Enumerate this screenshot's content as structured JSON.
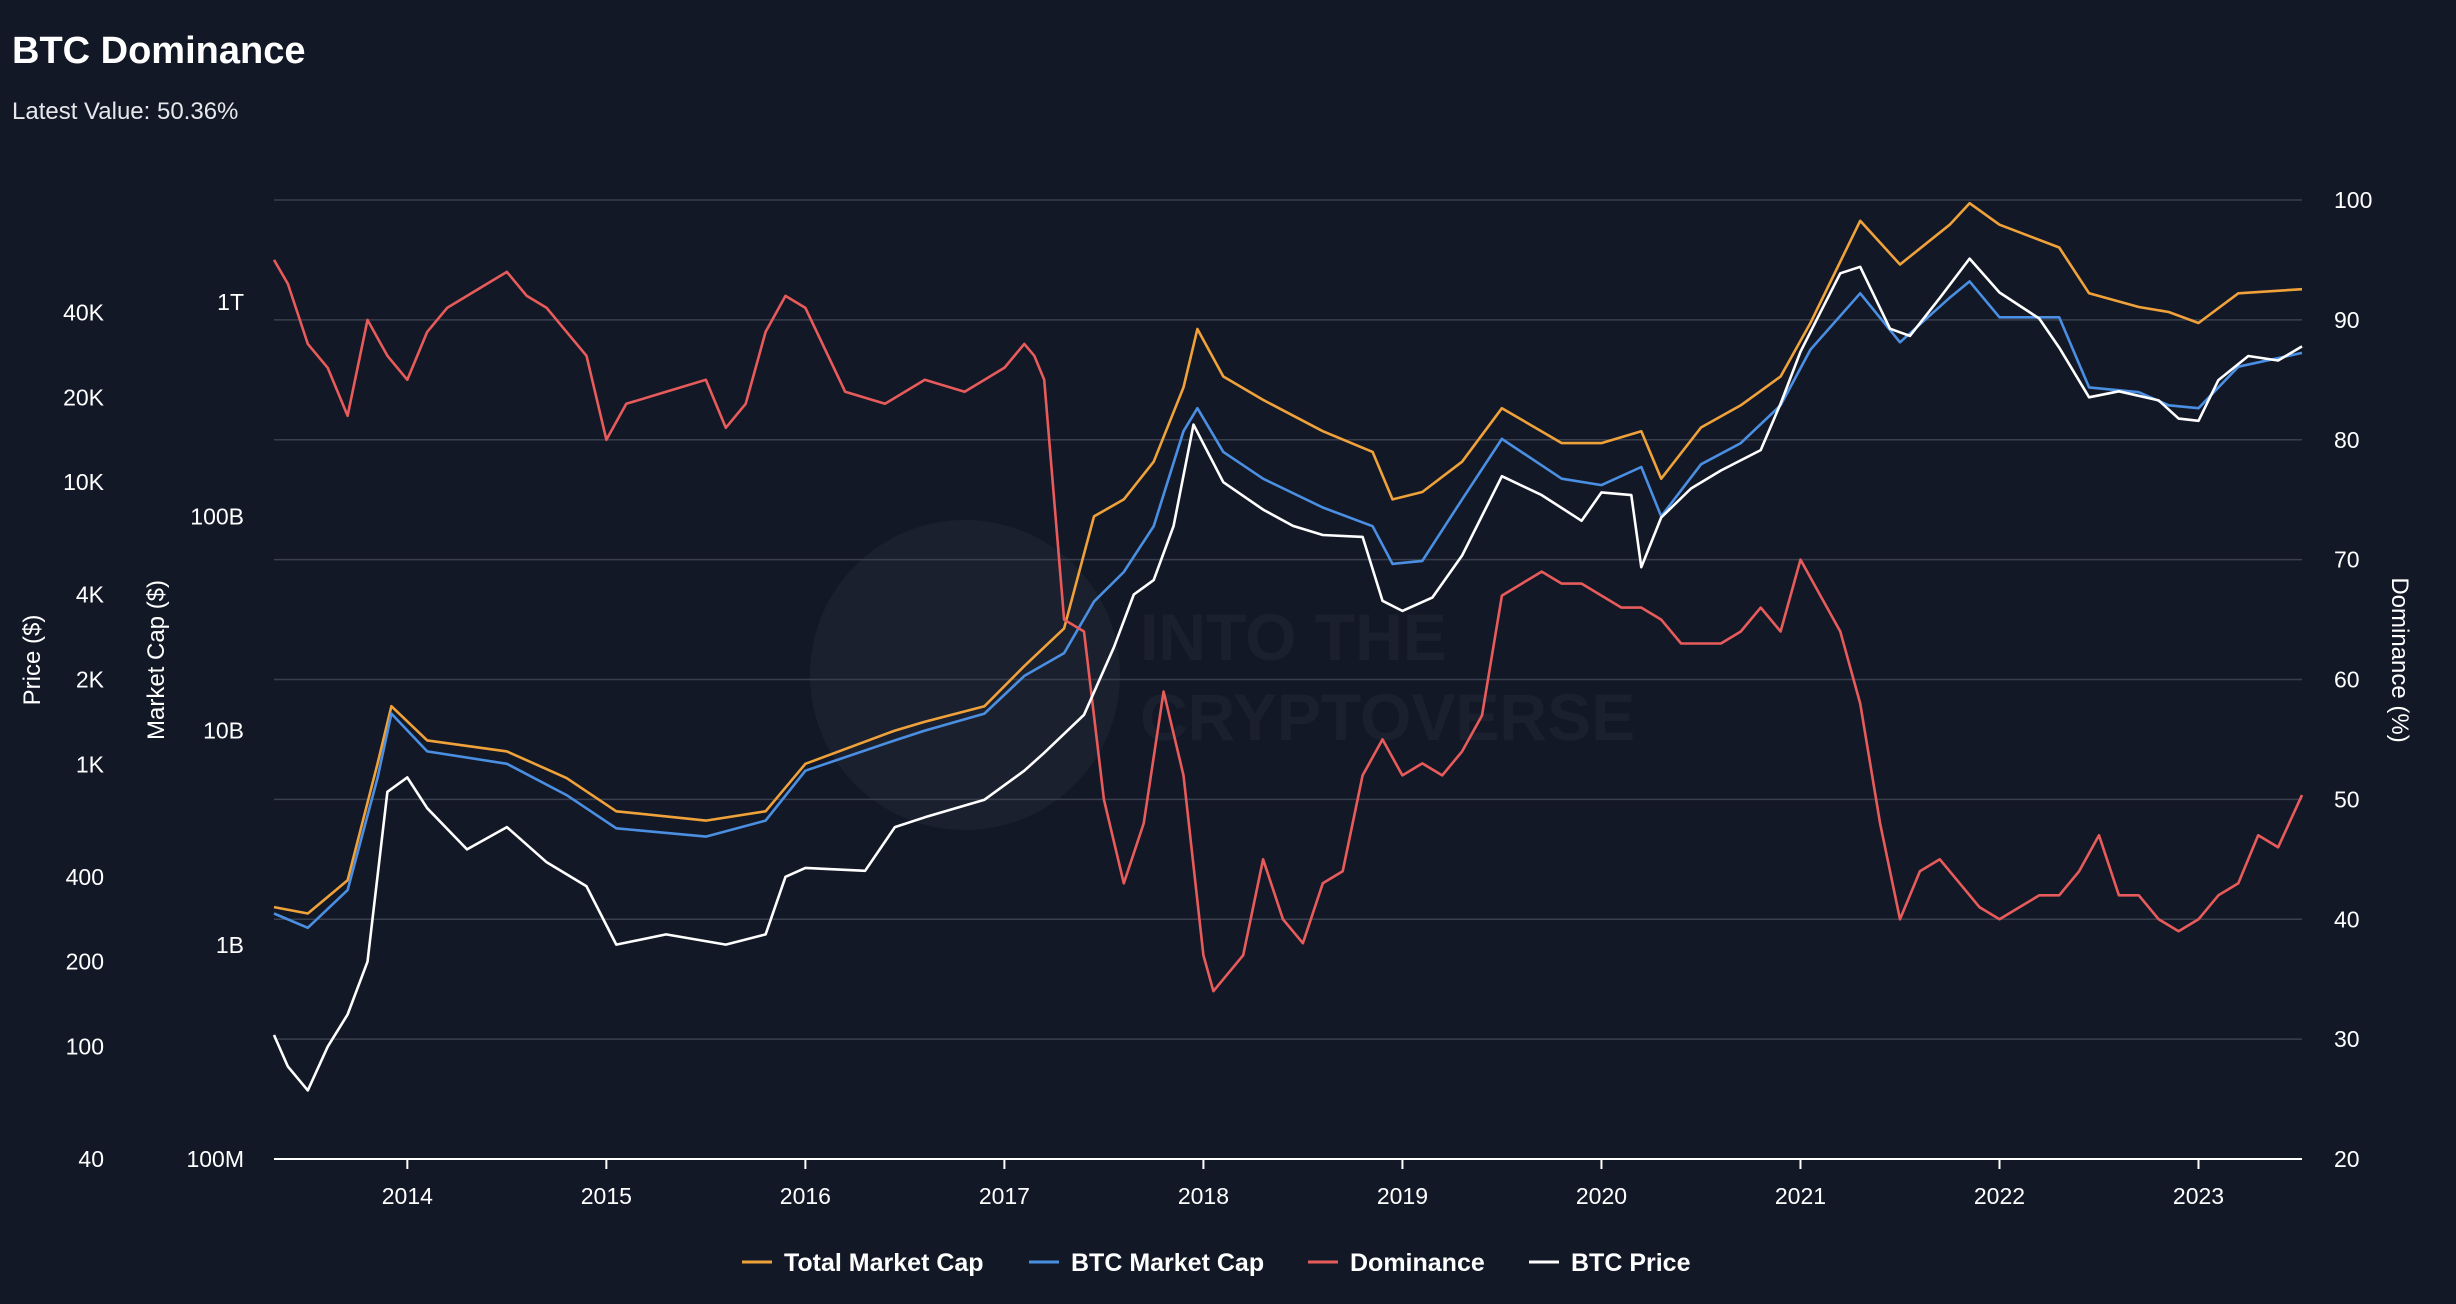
{
  "header": {
    "title": "BTC Dominance",
    "subtitle": "Latest Value: 50.36%"
  },
  "watermark": {
    "line1": "INTO THE",
    "line2": "CRYPTOVERSE"
  },
  "colors": {
    "background": "#131827",
    "grid": "#3a3f4d",
    "total_market_cap": "#f0a23a",
    "btc_market_cap": "#4a8fe2",
    "dominance": "#e85b5b",
    "btc_price": "#ffffff"
  },
  "chart_data": {
    "type": "line",
    "title": "BTC Dominance",
    "subtitle": "Latest Value: 50.36%",
    "x_range": [
      2013.33,
      2023.52
    ],
    "x_ticks": [
      "2014",
      "2015",
      "2016",
      "2017",
      "2018",
      "2019",
      "2020",
      "2021",
      "2022",
      "2023"
    ],
    "axes": {
      "price": {
        "label": "Price ($)",
        "scale": "log",
        "range": [
          40,
          100000
        ],
        "ticks": [
          {
            "v": 40,
            "label": "40"
          },
          {
            "v": 100,
            "label": "100"
          },
          {
            "v": 200,
            "label": "200"
          },
          {
            "v": 400,
            "label": "400"
          },
          {
            "v": 1000,
            "label": "1K"
          },
          {
            "v": 2000,
            "label": "2K"
          },
          {
            "v": 4000,
            "label": "4K"
          },
          {
            "v": 10000,
            "label": "10K"
          },
          {
            "v": 20000,
            "label": "20K"
          },
          {
            "v": 40000,
            "label": "40K"
          }
        ]
      },
      "market_cap": {
        "label": "Market Cap ($)",
        "scale": "log",
        "range": [
          100000000,
          3000000000000
        ],
        "ticks": [
          {
            "v": 100000000,
            "label": "100M"
          },
          {
            "v": 1000000000,
            "label": "1B"
          },
          {
            "v": 10000000000,
            "label": "10B"
          },
          {
            "v": 100000000000,
            "label": "100B"
          },
          {
            "v": 1000000000000,
            "label": "1T"
          }
        ]
      },
      "dominance": {
        "label": "Dominance (%)",
        "scale": "linear",
        "range": [
          20,
          100
        ],
        "ticks": [
          {
            "v": 20,
            "label": "20"
          },
          {
            "v": 30,
            "label": "30"
          },
          {
            "v": 40,
            "label": "40"
          },
          {
            "v": 50,
            "label": "50"
          },
          {
            "v": 60,
            "label": "60"
          },
          {
            "v": 70,
            "label": "70"
          },
          {
            "v": 80,
            "label": "80"
          },
          {
            "v": 90,
            "label": "90"
          },
          {
            "v": 100,
            "label": "100"
          }
        ]
      }
    },
    "legend": {
      "placement": "bottom-center",
      "entries": [
        "Total Market Cap",
        "BTC Market Cap",
        "Dominance",
        "BTC Price"
      ]
    },
    "series": [
      {
        "name": "Total Market Cap",
        "axis": "market_cap",
        "x": [
          2013.33,
          2013.5,
          2013.7,
          2013.85,
          2013.92,
          2014.1,
          2014.5,
          2014.8,
          2015.05,
          2015.5,
          2015.8,
          2016.0,
          2016.45,
          2016.6,
          2016.9,
          2017.1,
          2017.3,
          2017.45,
          2017.6,
          2017.75,
          2017.9,
          2017.97,
          2018.1,
          2018.3,
          2018.6,
          2018.85,
          2018.95,
          2019.1,
          2019.3,
          2019.5,
          2019.8,
          2020.0,
          2020.2,
          2020.3,
          2020.5,
          2020.7,
          2020.9,
          2021.05,
          2021.3,
          2021.5,
          2021.75,
          2021.85,
          2022.0,
          2022.3,
          2022.45,
          2022.7,
          2022.85,
          2023.0,
          2023.2,
          2023.52
        ],
        "values": [
          1500000000,
          1400000000,
          2000000000,
          7000000000,
          13000000000,
          9000000000,
          8000000000,
          6000000000,
          4200000000,
          3800000000,
          4200000000,
          7000000000,
          10000000000,
          11000000000,
          13000000000,
          20000000000,
          30000000000,
          100000000000,
          120000000000,
          180000000000,
          400000000000,
          750000000000,
          450000000000,
          350000000000,
          250000000000,
          200000000000,
          120000000000,
          130000000000,
          180000000000,
          320000000000,
          220000000000,
          220000000000,
          250000000000,
          150000000000,
          260000000000,
          330000000000,
          450000000000,
          800000000000,
          2400000000000,
          1500000000000,
          2300000000000,
          2900000000000,
          2300000000000,
          1800000000000,
          1100000000000,
          950000000000,
          900000000000,
          800000000000,
          1100000000000,
          1150000000000
        ]
      },
      {
        "name": "BTC Market Cap",
        "axis": "market_cap",
        "x": [
          2013.33,
          2013.5,
          2013.7,
          2013.85,
          2013.92,
          2014.1,
          2014.5,
          2014.8,
          2015.05,
          2015.5,
          2015.8,
          2016.0,
          2016.45,
          2016.6,
          2016.9,
          2017.1,
          2017.3,
          2017.45,
          2017.6,
          2017.75,
          2017.9,
          2017.97,
          2018.1,
          2018.3,
          2018.6,
          2018.85,
          2018.95,
          2019.1,
          2019.3,
          2019.5,
          2019.8,
          2020.0,
          2020.2,
          2020.3,
          2020.5,
          2020.7,
          2020.9,
          2021.05,
          2021.3,
          2021.5,
          2021.75,
          2021.85,
          2022.0,
          2022.3,
          2022.45,
          2022.7,
          2022.85,
          2023.0,
          2023.2,
          2023.52
        ],
        "values": [
          1400000000,
          1200000000,
          1800000000,
          6000000000,
          12000000000,
          8000000000,
          7000000000,
          5000000000,
          3500000000,
          3200000000,
          3800000000,
          6500000000,
          9000000000,
          10000000000,
          12000000000,
          18000000000,
          23000000000,
          40000000000,
          55000000000,
          90000000000,
          250000000000,
          320000000000,
          200000000000,
          150000000000,
          110000000000,
          90000000000,
          60000000000,
          62000000000,
          120000000000,
          230000000000,
          150000000000,
          140000000000,
          170000000000,
          100000000000,
          175000000000,
          220000000000,
          330000000000,
          600000000000,
          1100000000000,
          650000000000,
          1050000000000,
          1250000000000,
          850000000000,
          850000000000,
          400000000000,
          380000000000,
          330000000000,
          320000000000,
          500000000000,
          580000000000
        ]
      },
      {
        "name": "Dominance",
        "axis": "dominance",
        "x": [
          2013.33,
          2013.4,
          2013.5,
          2013.6,
          2013.7,
          2013.8,
          2013.9,
          2014.0,
          2014.1,
          2014.2,
          2014.3,
          2014.4,
          2014.5,
          2014.6,
          2014.7,
          2014.8,
          2014.9,
          2015.0,
          2015.1,
          2015.3,
          2015.5,
          2015.6,
          2015.7,
          2015.8,
          2015.9,
          2016.0,
          2016.2,
          2016.4,
          2016.6,
          2016.8,
          2017.0,
          2017.1,
          2017.15,
          2017.2,
          2017.3,
          2017.4,
          2017.5,
          2017.6,
          2017.7,
          2017.8,
          2017.9,
          2018.0,
          2018.05,
          2018.2,
          2018.3,
          2018.4,
          2018.5,
          2018.6,
          2018.7,
          2018.8,
          2018.9,
          2019.0,
          2019.1,
          2019.2,
          2019.3,
          2019.4,
          2019.5,
          2019.6,
          2019.7,
          2019.8,
          2019.9,
          2020.0,
          2020.1,
          2020.2,
          2020.3,
          2020.4,
          2020.5,
          2020.6,
          2020.7,
          2020.8,
          2020.9,
          2021.0,
          2021.1,
          2021.2,
          2021.3,
          2021.4,
          2021.5,
          2021.6,
          2021.7,
          2021.8,
          2021.9,
          2022.0,
          2022.1,
          2022.2,
          2022.3,
          2022.4,
          2022.5,
          2022.6,
          2022.7,
          2022.8,
          2022.9,
          2023.0,
          2023.1,
          2023.2,
          2023.3,
          2023.4,
          2023.52
        ],
        "values": [
          95,
          93,
          88,
          86,
          82,
          90,
          87,
          85,
          89,
          91,
          92,
          93,
          94,
          92,
          91,
          89,
          87,
          80,
          83,
          84,
          85,
          81,
          83,
          89,
          92,
          91,
          84,
          83,
          85,
          84,
          86,
          88,
          87,
          85,
          65,
          64,
          50,
          43,
          48,
          59,
          52,
          37,
          34,
          37,
          45,
          40,
          38,
          43,
          44,
          52,
          55,
          52,
          53,
          52,
          54,
          57,
          67,
          68,
          69,
          68,
          68,
          67,
          66,
          66,
          65,
          63,
          63,
          63,
          64,
          66,
          64,
          70,
          67,
          64,
          58,
          48,
          40,
          44,
          45,
          43,
          41,
          40,
          41,
          42,
          42,
          44,
          47,
          42,
          42,
          40,
          39,
          40,
          42,
          43,
          47,
          46,
          50.36
        ]
      },
      {
        "name": "BTC Price",
        "axis": "price",
        "x": [
          2013.33,
          2013.4,
          2013.5,
          2013.6,
          2013.7,
          2013.8,
          2013.9,
          2014.0,
          2014.1,
          2014.3,
          2014.5,
          2014.7,
          2014.9,
          2015.05,
          2015.3,
          2015.6,
          2015.8,
          2015.9,
          2016.0,
          2016.3,
          2016.45,
          2016.6,
          2016.9,
          2017.1,
          2017.2,
          2017.4,
          2017.55,
          2017.65,
          2017.75,
          2017.85,
          2017.95,
          2018.1,
          2018.3,
          2018.45,
          2018.6,
          2018.8,
          2018.9,
          2019.0,
          2019.15,
          2019.3,
          2019.5,
          2019.7,
          2019.9,
          2020.0,
          2020.15,
          2020.2,
          2020.3,
          2020.45,
          2020.6,
          2020.8,
          2020.9,
          2021.0,
          2021.1,
          2021.2,
          2021.3,
          2021.45,
          2021.55,
          2021.7,
          2021.85,
          2022.0,
          2022.2,
          2022.3,
          2022.45,
          2022.6,
          2022.8,
          2022.9,
          2023.0,
          2023.1,
          2023.25,
          2023.4,
          2023.52
        ],
        "values": [
          110,
          85,
          70,
          100,
          130,
          200,
          800,
          900,
          700,
          500,
          600,
          450,
          370,
          230,
          250,
          230,
          250,
          400,
          430,
          420,
          600,
          650,
          750,
          950,
          1100,
          1500,
          2600,
          4000,
          4500,
          7000,
          16000,
          10000,
          8000,
          7000,
          6500,
          6400,
          3800,
          3500,
          3900,
          5500,
          10500,
          9000,
          7300,
          9200,
          9000,
          5000,
          7500,
          9500,
          11000,
          13000,
          19000,
          29000,
          40000,
          55000,
          58000,
          35000,
          33000,
          45000,
          62000,
          47000,
          38000,
          30000,
          20000,
          21000,
          19500,
          16800,
          16500,
          23000,
          28000,
          27000,
          30300
        ]
      }
    ]
  }
}
